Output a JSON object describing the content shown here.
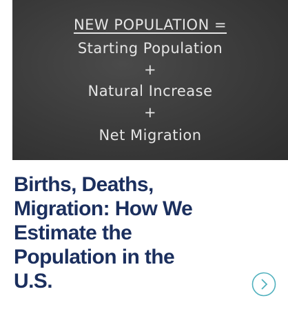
{
  "image": {
    "lines": [
      "NEW POPULATION =",
      "Starting Population",
      "+",
      "Natural Increase",
      "+",
      "Net Migration"
    ]
  },
  "card": {
    "title_lines": [
      "Births, Deaths,",
      "Migration: How We",
      "Estimate the",
      "Population in the",
      "U.S."
    ]
  }
}
